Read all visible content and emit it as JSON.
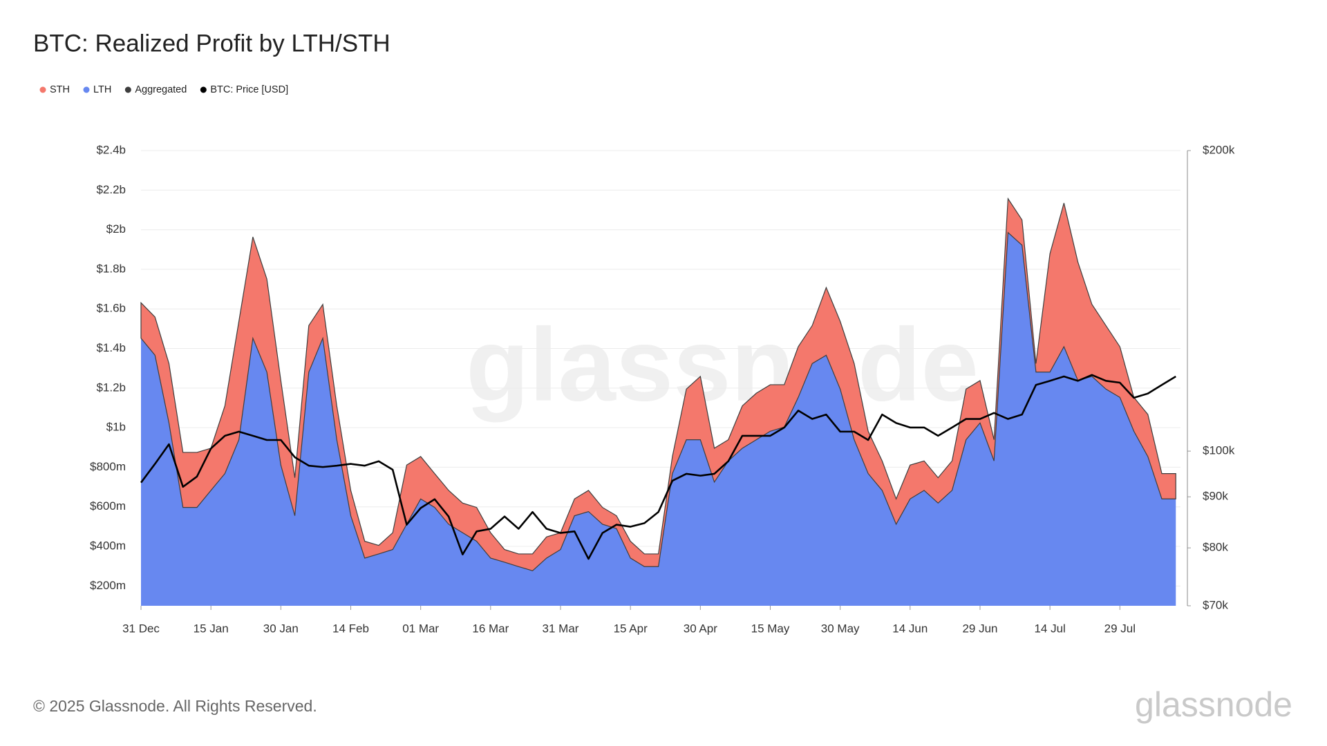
{
  "chart_data": {
    "type": "area",
    "title": "BTC: Realized Profit by LTH/STH",
    "watermark": "glassnode",
    "copyright": "© 2025 Glassnode. All Rights Reserved.",
    "logo": "glassnode",
    "legend_extra": {
      "name": "Aggregated",
      "color": "#3d3d3d"
    },
    "x": [
      0,
      3,
      6,
      9,
      12,
      15,
      18,
      21,
      24,
      27,
      30,
      33,
      36,
      39,
      42,
      45,
      48,
      51,
      54,
      57,
      60,
      63,
      66,
      69,
      72,
      75,
      78,
      81,
      84,
      87,
      90,
      93,
      96,
      99,
      102,
      105,
      108,
      111,
      114,
      117,
      120,
      123,
      126,
      129,
      132,
      135,
      138,
      141,
      144,
      147,
      150,
      153,
      156,
      159,
      162,
      165,
      168,
      171,
      174,
      177,
      180,
      183,
      186,
      189,
      192,
      195,
      198,
      201,
      204,
      207,
      210,
      213,
      216,
      219,
      222
    ],
    "xlim": [
      0,
      223
    ],
    "xticks": [
      {
        "value": 0,
        "label": "31 Dec"
      },
      {
        "value": 15,
        "label": "15 Jan"
      },
      {
        "value": 30,
        "label": "30 Jan"
      },
      {
        "value": 45,
        "label": "14 Feb"
      },
      {
        "value": 60,
        "label": "01 Mar"
      },
      {
        "value": 75,
        "label": "16 Mar"
      },
      {
        "value": 90,
        "label": "31 Mar"
      },
      {
        "value": 105,
        "label": "15 Apr"
      },
      {
        "value": 120,
        "label": "30 Apr"
      },
      {
        "value": 135,
        "label": "15 May"
      },
      {
        "value": 150,
        "label": "30 May"
      },
      {
        "value": 165,
        "label": "14 Jun"
      },
      {
        "value": 180,
        "label": "29 Jun"
      },
      {
        "value": 195,
        "label": "14 Jul"
      },
      {
        "value": 210,
        "label": "29 Jul"
      }
    ],
    "ylim": [
      100,
      2400
    ],
    "yticks": [
      {
        "value": 200,
        "label": "$200m"
      },
      {
        "value": 400,
        "label": "$400m"
      },
      {
        "value": 600,
        "label": "$600m"
      },
      {
        "value": 800,
        "label": "$800m"
      },
      {
        "value": 1000,
        "label": "$1b"
      },
      {
        "value": 1200,
        "label": "$1.2b"
      },
      {
        "value": 1400,
        "label": "$1.4b"
      },
      {
        "value": 1600,
        "label": "$1.6b"
      },
      {
        "value": 1800,
        "label": "$1.8b"
      },
      {
        "value": 2000,
        "label": "$2b"
      },
      {
        "value": 2200,
        "label": "$2.2b"
      },
      {
        "value": 2400,
        "label": "$2.4b"
      }
    ],
    "y2lim": [
      70000,
      200000
    ],
    "y2log": true,
    "y2ticks": [
      {
        "value": 70000,
        "label": "$70k"
      },
      {
        "value": 80000,
        "label": "$80k"
      },
      {
        "value": 90000,
        "label": "$90k"
      },
      {
        "value": 100000,
        "label": "$100k"
      },
      {
        "value": 200000,
        "label": "$200k"
      }
    ],
    "grid": true,
    "series": [
      {
        "name": "STH",
        "color": "#f4786c",
        "values": [
          179,
          193,
          300,
          278,
          278,
          213,
          342,
          598,
          512,
          470,
          427,
          192,
          235,
          171,
          171,
          128,
          85,
          43,
          85,
          299,
          214,
          171,
          171,
          150,
          171,
          128,
          64,
          64,
          85,
          107,
          85,
          85,
          107,
          85,
          65,
          85,
          64,
          64,
          86,
          256,
          320,
          171,
          107,
          214,
          235,
          235,
          214,
          256,
          192,
          342,
          342,
          385,
          214,
          149,
          128,
          171,
          149,
          128,
          149,
          256,
          214,
          107,
          171,
          128,
          43,
          598,
          726,
          598,
          364,
          321,
          256,
          171,
          213,
          128,
          128
        ]
      },
      {
        "name": "LTH",
        "color": "#6788f0",
        "values": [
          1452,
          1366,
          1024,
          597,
          597,
          683,
          768,
          939,
          1452,
          1281,
          811,
          555,
          1281,
          1452,
          939,
          555,
          341,
          362,
          384,
          512,
          640,
          597,
          512,
          469,
          426,
          341,
          320,
          298,
          277,
          341,
          384,
          555,
          576,
          512,
          490,
          341,
          298,
          298,
          768,
          939,
          939,
          725,
          832,
          896,
          939,
          982,
          1003,
          1153,
          1324,
          1366,
          1195,
          939,
          768,
          683,
          512,
          640,
          683,
          619,
          683,
          939,
          1024,
          832,
          1986,
          1922,
          1281,
          1281,
          1409,
          1238,
          1259,
          1195,
          1153,
          982,
          854,
          640,
          640
        ]
      },
      {
        "name": "BTC: Price [USD]",
        "color": "#000000",
        "type": "line",
        "axis": "y2",
        "values": [
          93000,
          97100,
          101600,
          92100,
          94300,
          100600,
          103600,
          104600,
          103600,
          102600,
          102600,
          98600,
          96700,
          96400,
          96700,
          97100,
          96700,
          97700,
          95800,
          84400,
          87700,
          89500,
          86000,
          78800,
          83100,
          83600,
          86000,
          83600,
          86900,
          83600,
          82800,
          83100,
          78000,
          82800,
          84400,
          84000,
          84700,
          86900,
          93400,
          94900,
          94500,
          94900,
          97700,
          103600,
          103600,
          103600,
          105600,
          109800,
          107700,
          108800,
          104600,
          104600,
          102600,
          108800,
          106700,
          105600,
          105600,
          103600,
          105600,
          107700,
          107700,
          109200,
          107700,
          108800,
          116500,
          117600,
          118800,
          117600,
          119200,
          117600,
          117100,
          113100,
          114200,
          116500,
          118800
        ]
      }
    ]
  }
}
